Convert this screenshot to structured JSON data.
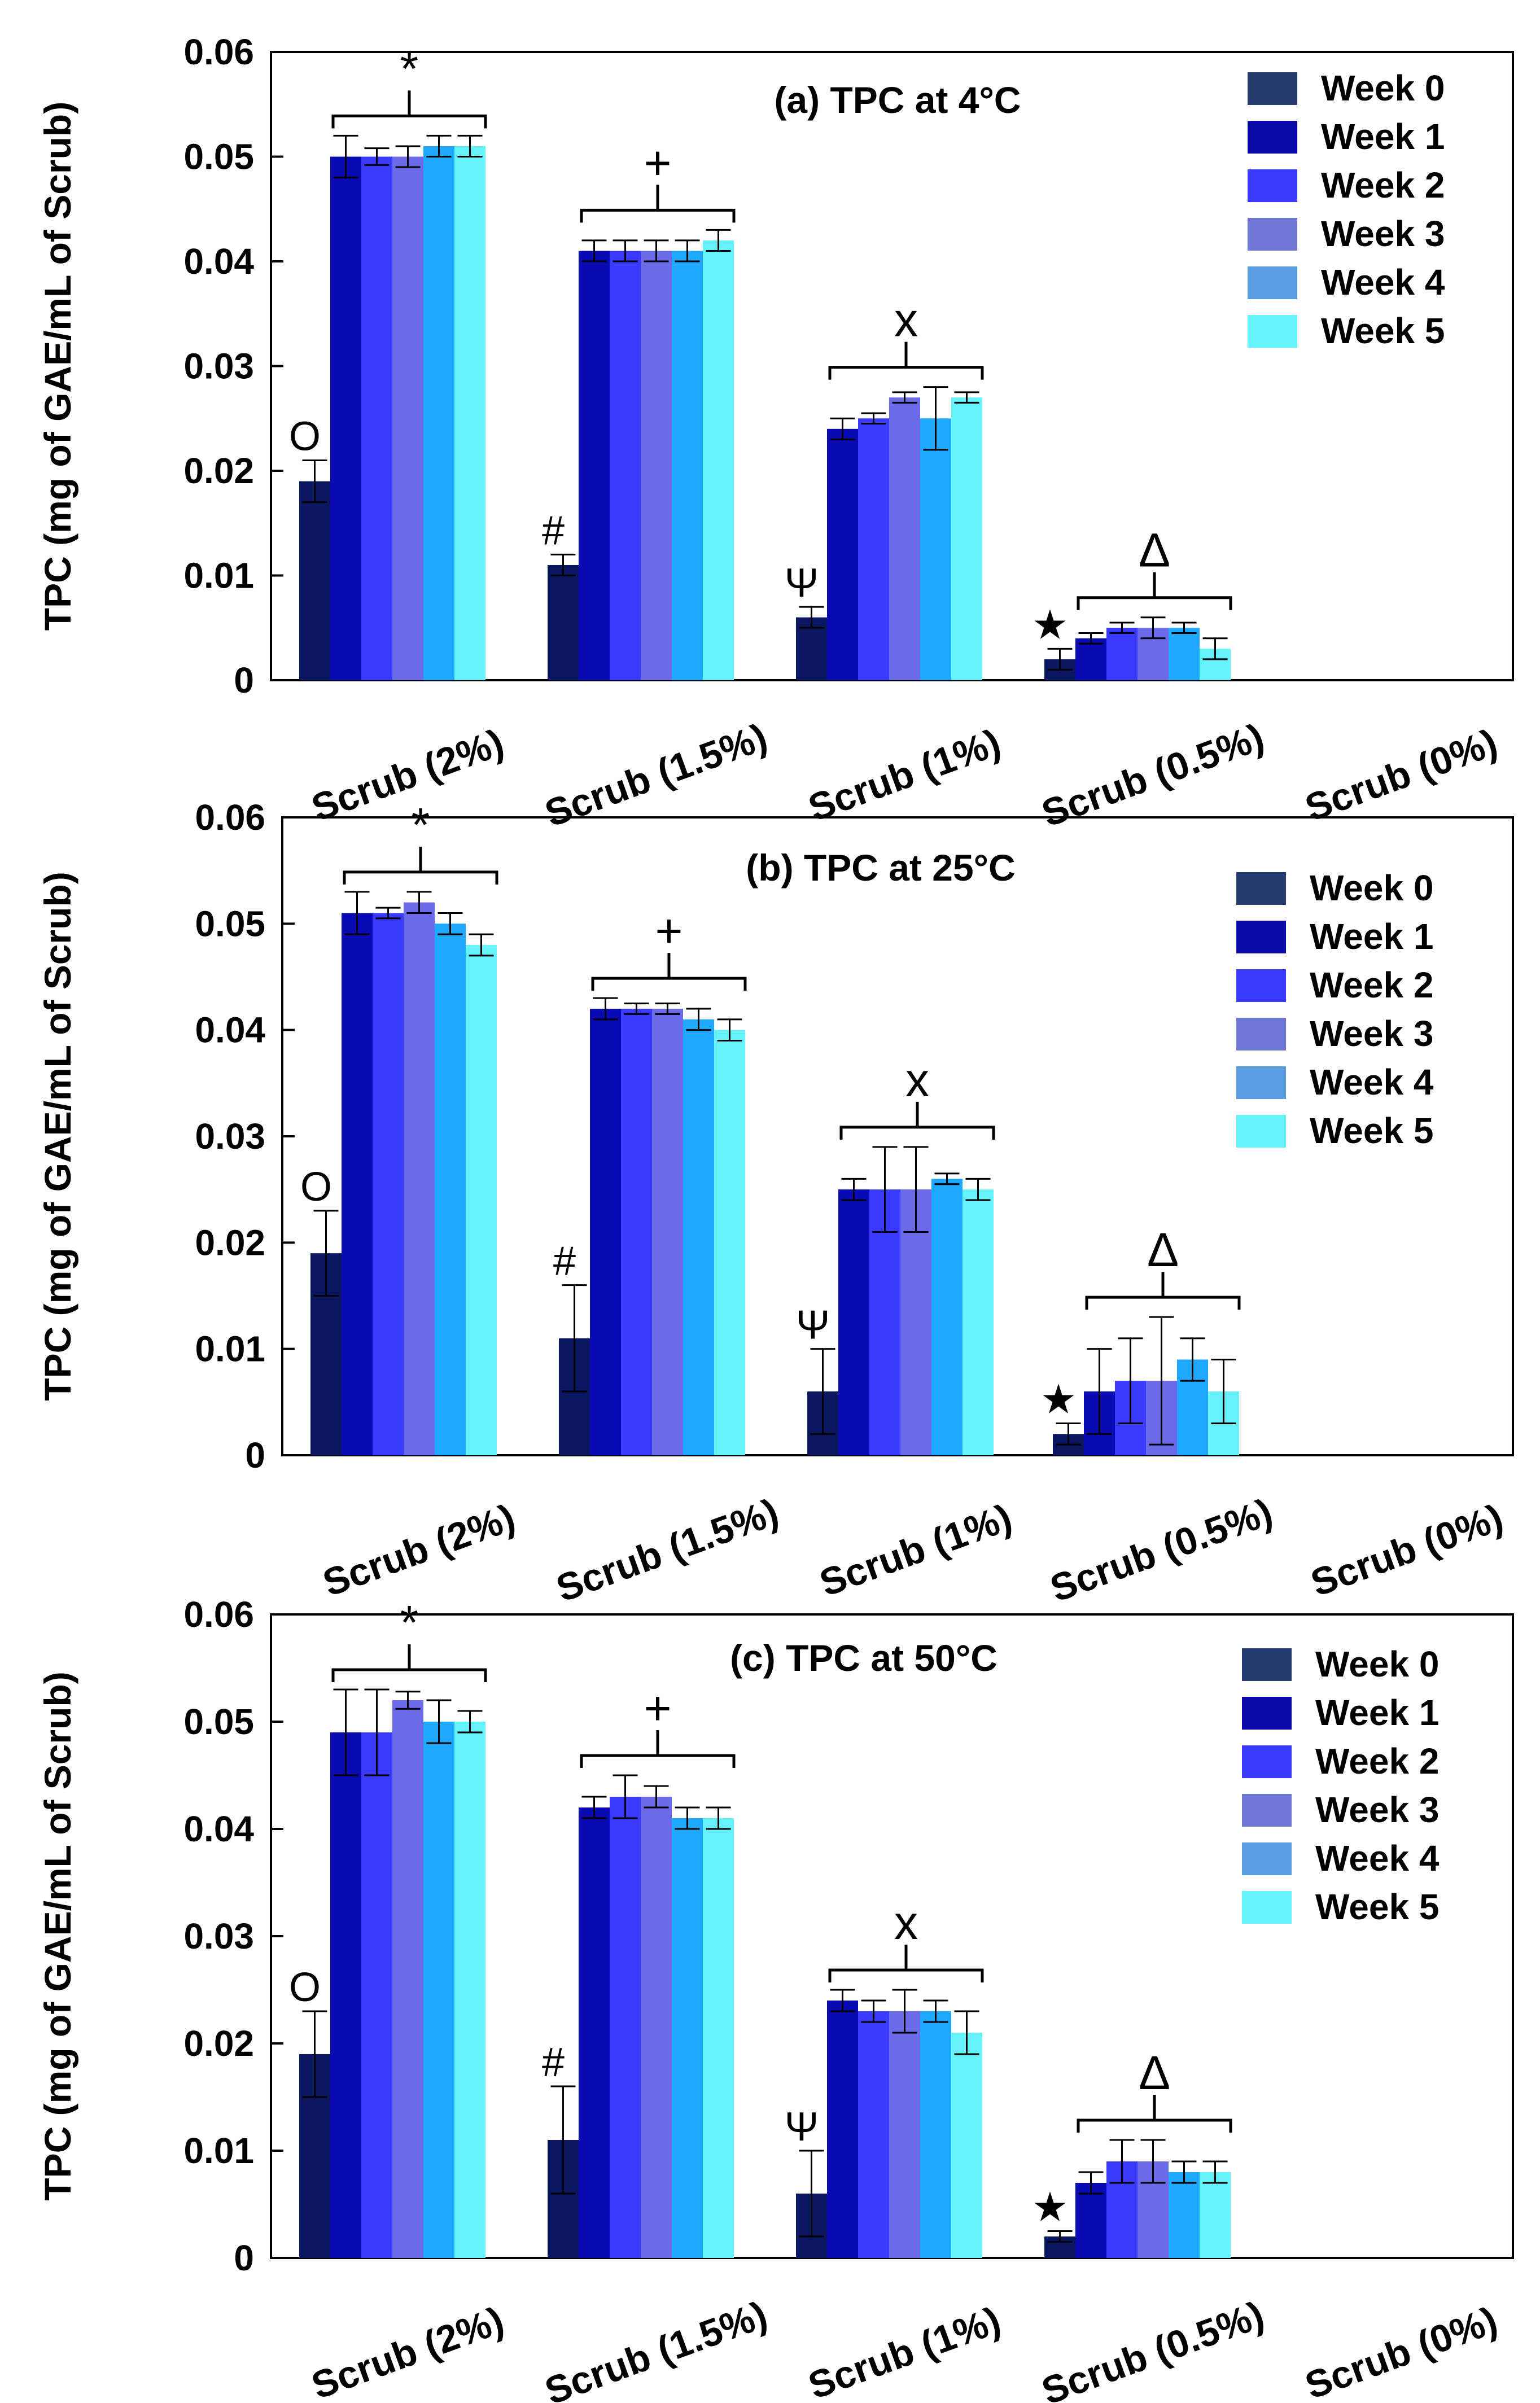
{
  "chart_data": [
    {
      "type": "bar",
      "title": "(a) TPC at 4°C",
      "ylabel": "TPC (mg of GAE/mL of Scrub)",
      "xlabel": "",
      "ylim": [
        0,
        0.06
      ],
      "yticks": [
        "0",
        "0.01",
        "0.02",
        "0.03",
        "0.04",
        "0.05",
        "0.06"
      ],
      "legend_position": "top-right",
      "categories": [
        "Scrub (2%)",
        "Scrub (1.5%)",
        "Scrub (1%)",
        "Scrub (0.5%)",
        "Scrub (0%)"
      ],
      "series": [
        {
          "name": "Week 0",
          "values": [
            0.019,
            0.011,
            0.006,
            0.002,
            0
          ],
          "errors": [
            0.002,
            0.001,
            0.001,
            0.001,
            0
          ]
        },
        {
          "name": "Week 1",
          "values": [
            0.05,
            0.041,
            0.024,
            0.004,
            0
          ],
          "errors": [
            0.002,
            0.001,
            0.001,
            0.0005,
            0
          ]
        },
        {
          "name": "Week 2",
          "values": [
            0.05,
            0.041,
            0.025,
            0.005,
            0
          ],
          "errors": [
            0.0008,
            0.001,
            0.0005,
            0.0005,
            0
          ]
        },
        {
          "name": "Week 3",
          "values": [
            0.05,
            0.041,
            0.027,
            0.005,
            0
          ],
          "errors": [
            0.001,
            0.001,
            0.0005,
            0.001,
            0
          ]
        },
        {
          "name": "Week 4",
          "values": [
            0.051,
            0.041,
            0.025,
            0.005,
            0
          ],
          "errors": [
            0.001,
            0.001,
            0.003,
            0.0005,
            0
          ]
        },
        {
          "name": "Week 5",
          "values": [
            0.051,
            0.042,
            0.027,
            0.003,
            0
          ],
          "errors": [
            0.001,
            0.001,
            0.0005,
            0.001,
            0
          ]
        }
      ],
      "group_markers": [
        {
          "week0": "O",
          "bracket": "*"
        },
        {
          "week0": "#",
          "bracket": "+"
        },
        {
          "week0": "Ψ",
          "bracket": "x"
        },
        {
          "week0": "★",
          "bracket": "Δ"
        },
        {
          "week0": "",
          "bracket": ""
        }
      ]
    },
    {
      "type": "bar",
      "title": "(b) TPC at 25°C",
      "ylabel": "TPC (mg of GAE/mL of Scrub)",
      "xlabel": "",
      "ylim": [
        0,
        0.06
      ],
      "yticks": [
        "0",
        "0.01",
        "0.02",
        "0.03",
        "0.04",
        "0.05",
        "0.06"
      ],
      "legend_position": "top-right",
      "categories": [
        "Scrub (2%)",
        "Scrub (1.5%)",
        "Scrub (1%)",
        "Scrub (0.5%)",
        "Scrub (0%)"
      ],
      "series": [
        {
          "name": "Week 0",
          "values": [
            0.019,
            0.011,
            0.006,
            0.002,
            0
          ],
          "errors": [
            0.004,
            0.005,
            0.004,
            0.001,
            0
          ]
        },
        {
          "name": "Week 1",
          "values": [
            0.051,
            0.042,
            0.025,
            0.006,
            0
          ],
          "errors": [
            0.002,
            0.001,
            0.001,
            0.004,
            0
          ]
        },
        {
          "name": "Week 2",
          "values": [
            0.051,
            0.042,
            0.025,
            0.007,
            0
          ],
          "errors": [
            0.0005,
            0.0005,
            0.004,
            0.004,
            0
          ]
        },
        {
          "name": "Week 3",
          "values": [
            0.052,
            0.042,
            0.025,
            0.007,
            0
          ],
          "errors": [
            0.001,
            0.0005,
            0.004,
            0.006,
            0
          ]
        },
        {
          "name": "Week 4",
          "values": [
            0.05,
            0.041,
            0.026,
            0.009,
            0
          ],
          "errors": [
            0.001,
            0.001,
            0.0005,
            0.002,
            0
          ]
        },
        {
          "name": "Week 5",
          "values": [
            0.048,
            0.04,
            0.025,
            0.006,
            0
          ],
          "errors": [
            0.001,
            0.001,
            0.001,
            0.003,
            0
          ]
        }
      ],
      "group_markers": [
        {
          "week0": "O",
          "bracket": "*"
        },
        {
          "week0": "#",
          "bracket": "+"
        },
        {
          "week0": "Ψ",
          "bracket": "x"
        },
        {
          "week0": "★",
          "bracket": "Δ"
        },
        {
          "week0": "",
          "bracket": ""
        }
      ]
    },
    {
      "type": "bar",
      "title": "(c) TPC at 50°C",
      "ylabel": "TPC (mg of GAE/mL of Scrub)",
      "xlabel": "",
      "ylim": [
        0,
        0.06
      ],
      "yticks": [
        "0",
        "0.01",
        "0.02",
        "0.03",
        "0.04",
        "0.05",
        "0.06"
      ],
      "legend_position": "top-right",
      "categories": [
        "Scrub (2%)",
        "Scrub (1.5%)",
        "Scrub (1%)",
        "Scrub (0.5%)",
        "Scrub (0%)"
      ],
      "series": [
        {
          "name": "Week 0",
          "values": [
            0.019,
            0.011,
            0.006,
            0.002,
            0
          ],
          "errors": [
            0.004,
            0.005,
            0.004,
            0.0005,
            0
          ]
        },
        {
          "name": "Week 1",
          "values": [
            0.049,
            0.042,
            0.024,
            0.007,
            0
          ],
          "errors": [
            0.004,
            0.001,
            0.001,
            0.001,
            0
          ]
        },
        {
          "name": "Week 2",
          "values": [
            0.049,
            0.043,
            0.023,
            0.009,
            0
          ],
          "errors": [
            0.004,
            0.002,
            0.001,
            0.002,
            0
          ]
        },
        {
          "name": "Week 3",
          "values": [
            0.052,
            0.043,
            0.023,
            0.009,
            0
          ],
          "errors": [
            0.0008,
            0.001,
            0.002,
            0.002,
            0
          ]
        },
        {
          "name": "Week 4",
          "values": [
            0.05,
            0.041,
            0.023,
            0.008,
            0
          ],
          "errors": [
            0.002,
            0.001,
            0.001,
            0.001,
            0
          ]
        },
        {
          "name": "Week 5",
          "values": [
            0.05,
            0.041,
            0.021,
            0.008,
            0
          ],
          "errors": [
            0.001,
            0.001,
            0.002,
            0.001,
            0
          ]
        }
      ],
      "group_markers": [
        {
          "week0": "O",
          "bracket": "*"
        },
        {
          "week0": "#",
          "bracket": "+"
        },
        {
          "week0": "Ψ",
          "bracket": "x"
        },
        {
          "week0": "★",
          "bracket": "Δ"
        },
        {
          "week0": "",
          "bracket": ""
        }
      ]
    }
  ],
  "colors": {
    "week_0": "#0a1660",
    "week_1": "#0a0ab4",
    "week_2": "#3a3aff",
    "week_3": "#6b6bea",
    "week_4": "#1ea8ff",
    "week_5": "#66f2fb",
    "legend_week_0": "#243d6e",
    "legend_week_1": "#0a0aa8",
    "legend_week_2": "#3a3aff",
    "legend_week_3": "#6e78d4",
    "legend_week_4": "#5a9ce0",
    "legend_week_5": "#66f2fb"
  }
}
